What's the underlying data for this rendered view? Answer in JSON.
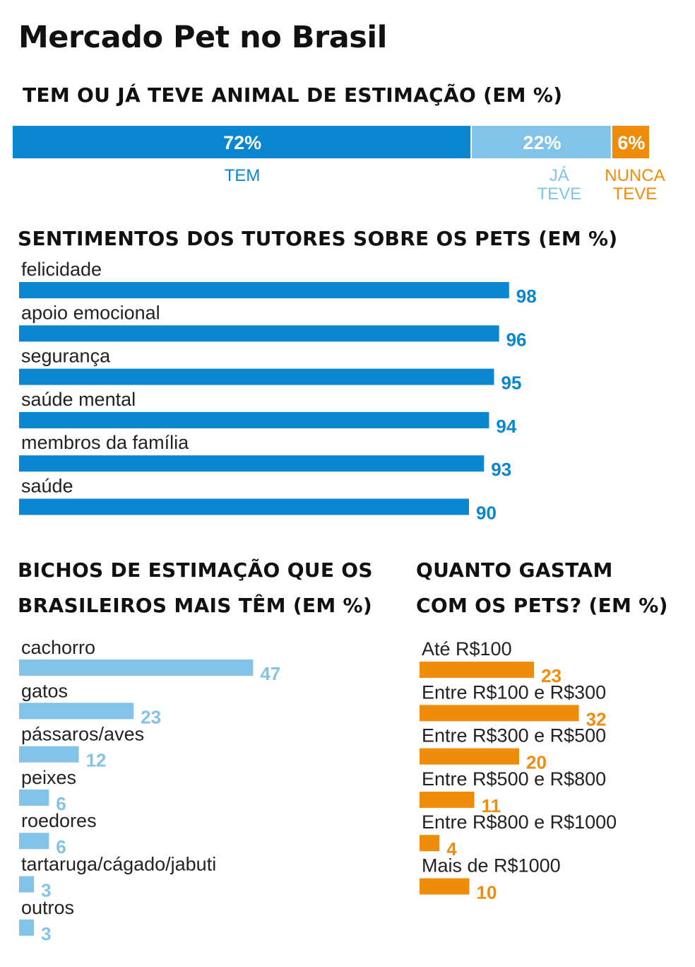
{
  "title": "Mercado Pet no Brasil",
  "colors": {
    "dark_blue": "#0a86d1",
    "light_blue": "#83c3e8",
    "orange": "#ef8c09"
  },
  "chart_data": [
    {
      "type": "bar",
      "orientation": "stacked-horizontal",
      "title": "TEM OU JÁ TEVE ANIMAL DE ESTIMAÇÃO (EM %)",
      "segments": [
        {
          "value": 72,
          "value_label": "72%",
          "label": [
            "TEM"
          ],
          "color": "#0a86d1"
        },
        {
          "value": 22,
          "value_label": "22%",
          "label": [
            "JÁ",
            "TEVE"
          ],
          "color": "#83c3e8"
        },
        {
          "value": 6,
          "value_label": "6%",
          "label": [
            "NUNCA",
            "TEVE"
          ],
          "color": "#ef8c09"
        }
      ]
    },
    {
      "type": "bar",
      "orientation": "horizontal",
      "title": "SENTIMENTOS DOS TUTORES SOBRE OS PETS (EM %)",
      "color": "#0a86d1",
      "categories": [
        "felicidade",
        "apoio emocional",
        "segurança",
        "saúde mental",
        "membros da família",
        "saúde"
      ],
      "values": [
        98,
        96,
        95,
        94,
        93,
        90
      ]
    },
    {
      "type": "bar",
      "orientation": "horizontal",
      "title": [
        "BICHOS DE ESTIMAÇÃO QUE OS",
        "BRASILEIROS MAIS TÊM (EM %)"
      ],
      "color": "#83c3e8",
      "categories": [
        "cachorro",
        "gatos",
        "pássaros/aves",
        "peixes",
        "roedores",
        "tartaruga/cágado/jabuti",
        "outros"
      ],
      "values": [
        47,
        23,
        12,
        6,
        6,
        3,
        3
      ]
    },
    {
      "type": "bar",
      "orientation": "horizontal",
      "title": [
        "QUANTO GASTAM",
        "COM OS PETS? (EM %)"
      ],
      "color": "#ef8c09",
      "categories": [
        "Até R$100",
        "Entre R$100 e R$300",
        "Entre R$300 e R$500",
        "Entre R$500 e R$800",
        "Entre R$800 e R$1000",
        "Mais de R$1000"
      ],
      "values": [
        23,
        32,
        20,
        11,
        4,
        10
      ]
    }
  ]
}
